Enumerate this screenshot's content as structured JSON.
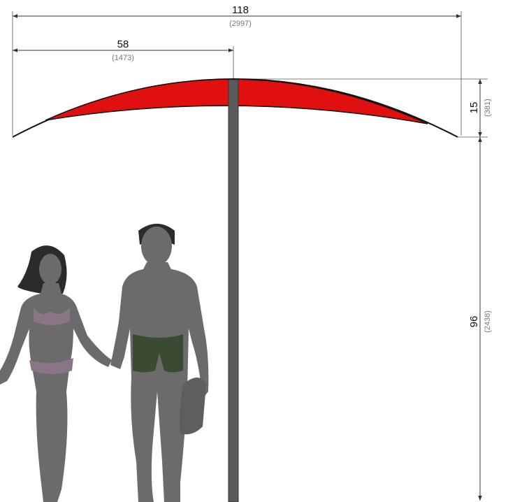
{
  "dimensions": {
    "overall_width": {
      "inches": "118",
      "mm": "(2997)"
    },
    "half_width": {
      "inches": "58",
      "mm": "(1473)"
    },
    "canopy_height": {
      "inches": "15",
      "mm": "(381)"
    },
    "clearance_height": {
      "inches": "96",
      "mm": "(2438)"
    }
  }
}
